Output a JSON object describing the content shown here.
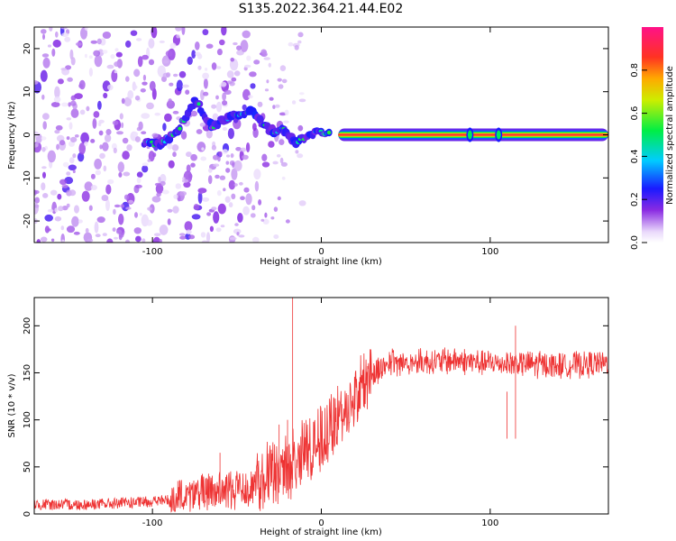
{
  "title": "S135.2022.364.21.44.E02",
  "colors": {
    "snr_line": "#ee3333",
    "axes": "#000000",
    "spectrogram_low": "#d8bff5",
    "spectrogram_mid": "#6a1bdc"
  },
  "chart_data": [
    {
      "type": "heatmap",
      "title": "S135.2022.364.21.44.E02",
      "xlabel": "Height of straight line (km)",
      "ylabel": "Frequency (Hz)",
      "xlim": [
        -170,
        170
      ],
      "ylim": [
        -25,
        25
      ],
      "x_ticks": [
        -100,
        0,
        100
      ],
      "y_ticks": [
        -20,
        -10,
        0,
        10,
        20
      ],
      "colorbar": {
        "label": "Normalized spectral amplitude",
        "range": [
          0.0,
          1.0
        ],
        "ticks": [
          "0.0",
          "0.2",
          "0.4",
          "0.6",
          "0.8"
        ],
        "colormap": "rainbow (white-purple-blue-cyan-green-yellow-orange-red-magenta)"
      },
      "features": {
        "main_band_frequency_hz": 0,
        "main_band_start_km": 10,
        "main_band_end_km": 170,
        "main_band_amplitude": 0.9,
        "blobs": [
          {
            "x": 88,
            "y": 0,
            "amplitude": 0.5
          },
          {
            "x": 105,
            "y": 0,
            "amplitude": 0.5
          }
        ],
        "ridge": [
          {
            "x": -105,
            "y": -2
          },
          {
            "x": -95,
            "y": -2
          },
          {
            "x": -85,
            "y": 1
          },
          {
            "x": -75,
            "y": 8
          },
          {
            "x": -65,
            "y": 2
          },
          {
            "x": -55,
            "y": 4
          },
          {
            "x": -42,
            "y": 5.5
          },
          {
            "x": -30,
            "y": 1
          },
          {
            "x": -22,
            "y": 1
          },
          {
            "x": -15,
            "y": -1.5
          },
          {
            "x": -5,
            "y": 0.5
          },
          {
            "x": 5,
            "y": 0
          }
        ],
        "diagonal_stripes_region_km": [
          -170,
          -40
        ]
      }
    },
    {
      "type": "line",
      "xlabel": "Height of straight line (km)",
      "ylabel": "SNR (10 * v/v)",
      "xlim": [
        -170,
        170
      ],
      "ylim": [
        0,
        230
      ],
      "x_ticks": [
        -100,
        0,
        100
      ],
      "y_ticks": [
        0,
        50,
        100,
        150,
        200
      ],
      "envelope": [
        {
          "x": -170,
          "y": 10
        },
        {
          "x": -140,
          "y": 10
        },
        {
          "x": -110,
          "y": 12
        },
        {
          "x": -90,
          "y": 15
        },
        {
          "x": -80,
          "y": 20
        },
        {
          "x": -60,
          "y": 25
        },
        {
          "x": -40,
          "y": 30
        },
        {
          "x": -30,
          "y": 40
        },
        {
          "x": -20,
          "y": 50
        },
        {
          "x": -10,
          "y": 65
        },
        {
          "x": 0,
          "y": 80
        },
        {
          "x": 10,
          "y": 100
        },
        {
          "x": 20,
          "y": 125
        },
        {
          "x": 30,
          "y": 150
        },
        {
          "x": 40,
          "y": 160
        },
        {
          "x": 60,
          "y": 162
        },
        {
          "x": 80,
          "y": 163
        },
        {
          "x": 100,
          "y": 160
        },
        {
          "x": 120,
          "y": 160
        },
        {
          "x": 140,
          "y": 158
        },
        {
          "x": 170,
          "y": 160
        }
      ],
      "spikes": [
        {
          "x": -17,
          "y": 230
        },
        {
          "x": -20,
          "y": 100
        },
        {
          "x": -25,
          "y": 95
        },
        {
          "x": -85,
          "y": 35
        },
        {
          "x": -60,
          "y": 65
        },
        {
          "x": 115,
          "y": 200
        },
        {
          "x": 110,
          "y": 130
        }
      ]
    }
  ]
}
